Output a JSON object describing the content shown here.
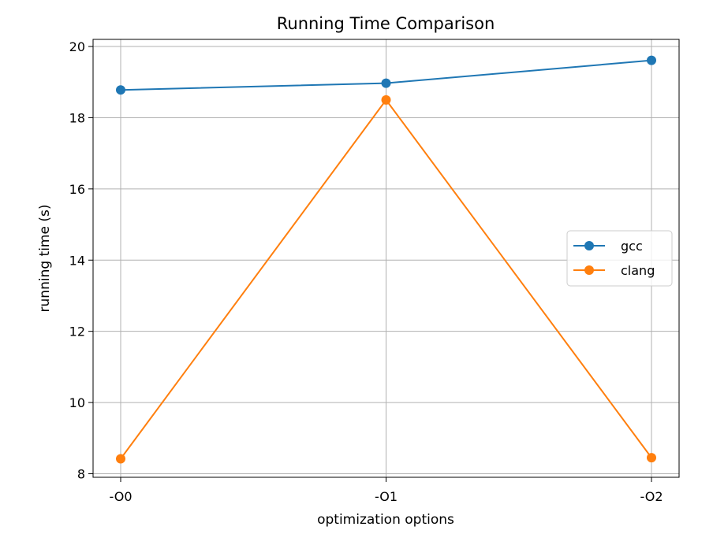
{
  "chart_data": {
    "type": "line",
    "title": "Running Time Comparison",
    "xlabel": "optimization options",
    "ylabel": "running time (s)",
    "categories": [
      "-O0",
      "-O1",
      "-O2"
    ],
    "series": [
      {
        "name": "gcc",
        "values": [
          18.78,
          18.97,
          19.61
        ],
        "color": "#1f77b4",
        "marker": "circle"
      },
      {
        "name": "clang",
        "values": [
          8.42,
          18.5,
          8.45
        ],
        "color": "#ff7f0e",
        "marker": "circle"
      }
    ],
    "ylim": [
      7.9,
      20.2
    ],
    "yticks": [
      8,
      10,
      12,
      14,
      16,
      18,
      20
    ],
    "grid": true,
    "legend": {
      "placement": "center-right"
    }
  }
}
